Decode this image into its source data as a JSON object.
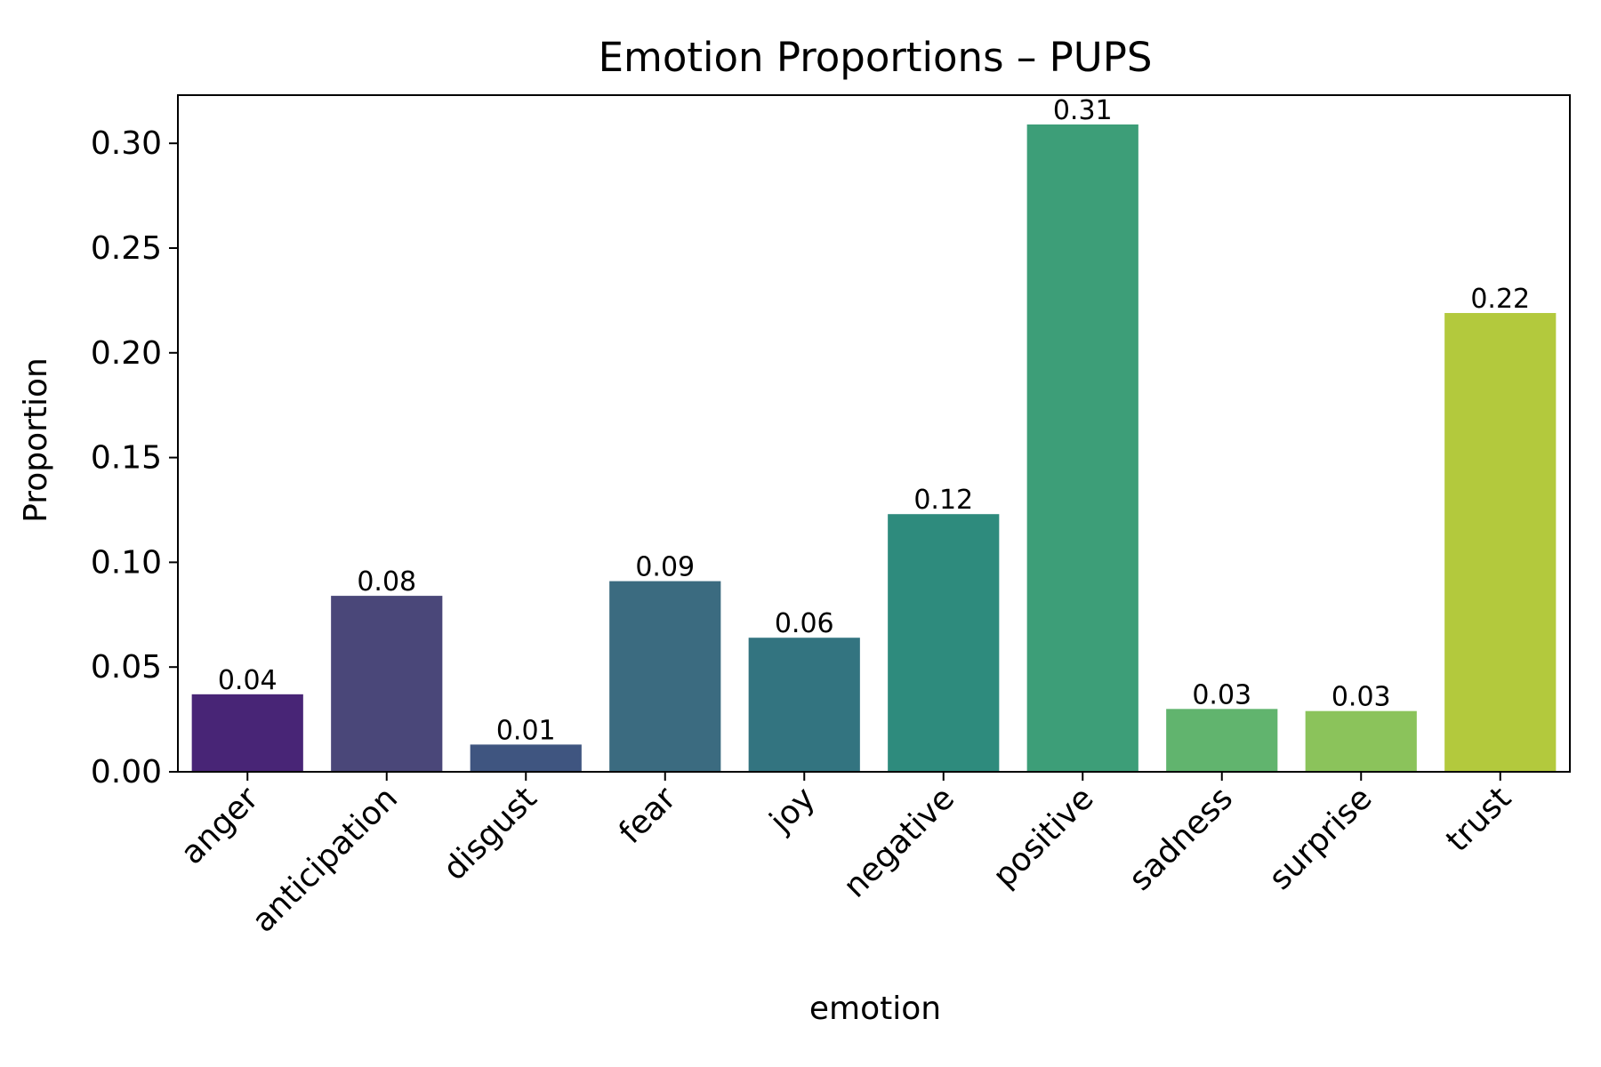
{
  "chart_data": {
    "type": "bar",
    "title": "Emotion Proportions – PUPS",
    "xlabel": "emotion",
    "ylabel": "Proportion",
    "ylim": [
      0,
      0.323
    ],
    "yticks": [
      "0.00",
      "0.05",
      "0.10",
      "0.15",
      "0.20",
      "0.25",
      "0.30"
    ],
    "categories": [
      "anger",
      "anticipation",
      "disgust",
      "fear",
      "joy",
      "negative",
      "positive",
      "sadness",
      "surprise",
      "trust"
    ],
    "values": [
      0.037,
      0.084,
      0.013,
      0.091,
      0.064,
      0.123,
      0.309,
      0.03,
      0.029,
      0.219
    ],
    "value_labels": [
      "0.04",
      "0.08",
      "0.01",
      "0.09",
      "0.06",
      "0.12",
      "0.31",
      "0.03",
      "0.03",
      "0.22"
    ],
    "colors": [
      "#482576",
      "#4a4779",
      "#3f5580",
      "#3b6b80",
      "#337480",
      "#2e8b7d",
      "#3d9e78",
      "#61b46e",
      "#8bc35b",
      "#b3c93d"
    ],
    "grid": false,
    "legend": "none"
  }
}
